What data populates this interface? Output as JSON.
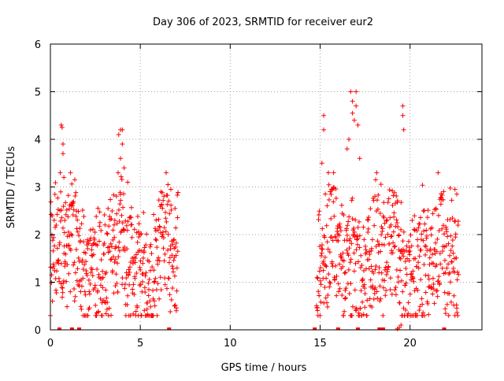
{
  "chart_data": {
    "type": "scatter",
    "title": "Day 306 of 2023, SRMTID for receiver eur2",
    "xlabel": "GPS time / hours",
    "ylabel": "SRMTID / TECUs",
    "xlim": [
      0,
      24
    ],
    "ylim": [
      0,
      6
    ],
    "x_ticks": [
      0,
      5,
      10,
      15,
      20
    ],
    "y_ticks": [
      0,
      1,
      2,
      3,
      4,
      5,
      6
    ],
    "x_tick_labels": [
      "0",
      "5",
      "10",
      "15",
      "20"
    ],
    "y_tick_labels": [
      "0",
      "1",
      "2",
      "3",
      "4",
      "5",
      "6"
    ],
    "grid": true,
    "marker": "+",
    "series_color": "#ff0000",
    "series": [
      {
        "name": "SRMTID",
        "segments": [
          {
            "x_start": 0.0,
            "x_end": 7.1,
            "level_range": [
              0.4,
              2.5
            ],
            "sample_step": 0.014
          },
          {
            "x_start": 14.8,
            "x_end": 22.7,
            "level_range": [
              0.4,
              2.5
            ],
            "sample_step": 0.014
          }
        ],
        "notable_points": [
          {
            "x": 0.6,
            "y": 4.3
          },
          {
            "x": 0.65,
            "y": 4.25
          },
          {
            "x": 0.7,
            "y": 3.9
          },
          {
            "x": 0.7,
            "y": 3.7
          },
          {
            "x": 0.75,
            "y": 3.2
          },
          {
            "x": 0.8,
            "y": 2.3
          },
          {
            "x": 3.8,
            "y": 4.1
          },
          {
            "x": 3.9,
            "y": 4.2
          },
          {
            "x": 4.0,
            "y": 4.2
          },
          {
            "x": 4.0,
            "y": 3.9
          },
          {
            "x": 3.9,
            "y": 3.6
          },
          {
            "x": 4.1,
            "y": 3.4
          },
          {
            "x": 4.3,
            "y": 3.1
          },
          {
            "x": 6.7,
            "y": 2.95
          },
          {
            "x": 6.9,
            "y": 0.5
          },
          {
            "x": 7.0,
            "y": 0.4
          },
          {
            "x": 15.2,
            "y": 4.5
          },
          {
            "x": 15.2,
            "y": 4.2
          },
          {
            "x": 15.1,
            "y": 3.5
          },
          {
            "x": 16.7,
            "y": 5.0
          },
          {
            "x": 16.8,
            "y": 4.8
          },
          {
            "x": 16.8,
            "y": 4.55
          },
          {
            "x": 17.0,
            "y": 5.0
          },
          {
            "x": 17.0,
            "y": 4.7
          },
          {
            "x": 16.9,
            "y": 4.4
          },
          {
            "x": 17.1,
            "y": 4.3
          },
          {
            "x": 16.6,
            "y": 4.0
          },
          {
            "x": 16.5,
            "y": 3.8
          },
          {
            "x": 17.2,
            "y": 3.6
          },
          {
            "x": 19.6,
            "y": 4.7
          },
          {
            "x": 19.6,
            "y": 4.5
          },
          {
            "x": 19.65,
            "y": 4.2
          },
          {
            "x": 19.3,
            "y": 0.02
          },
          {
            "x": 19.4,
            "y": 0.05
          },
          {
            "x": 19.5,
            "y": 0.1
          },
          {
            "x": 22.5,
            "y": 2.95
          },
          {
            "x": 22.6,
            "y": 2.85
          }
        ],
        "zero_markers_x": [
          0.5,
          1.2,
          1.6,
          6.6,
          14.7,
          16.0,
          17.1,
          18.3,
          18.5,
          21.9
        ]
      }
    ]
  }
}
